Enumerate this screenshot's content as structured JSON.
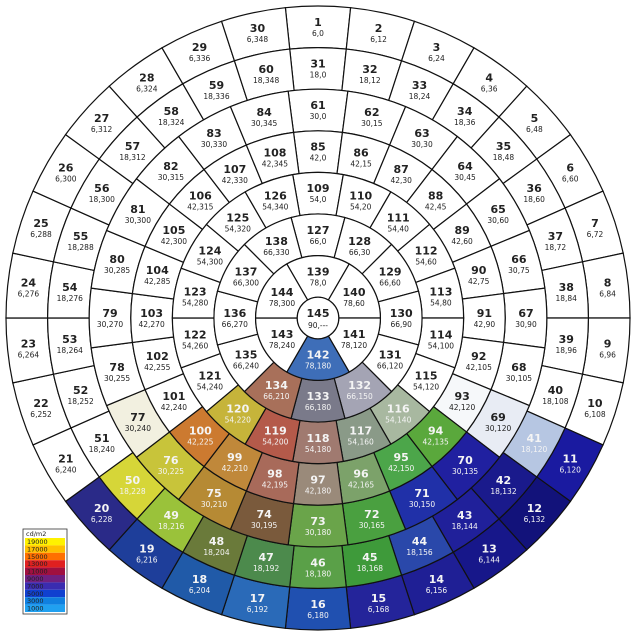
{
  "diagram": {
    "type": "sky-patch-luminance-map",
    "rings": [
      {
        "alt": 6,
        "count": 30,
        "start": 1
      },
      {
        "alt": 18,
        "count": 30,
        "start": 31
      },
      {
        "alt": 30,
        "count": 24,
        "start": 61
      },
      {
        "alt": 42,
        "count": 24,
        "start": 85
      },
      {
        "alt": 54,
        "count": 18,
        "start": 109
      },
      {
        "alt": 66,
        "count": 12,
        "start": 127
      },
      {
        "alt": 78,
        "count": 6,
        "start": 139
      },
      {
        "alt": 90,
        "count": 1,
        "start": 145
      }
    ],
    "zenith_coord": "90,---",
    "fills": {
      "1": null,
      "2": null,
      "3": null,
      "4": null,
      "5": null,
      "6": null,
      "7": null,
      "8": null,
      "9": null,
      "10": null,
      "11": "#1a1aa0",
      "12": "#12127a",
      "13": "#17178a",
      "14": "#1f1f95",
      "15": "#24249a",
      "16": "#2050b0",
      "17": "#2a6ab8",
      "18": "#205aa8",
      "19": "#1e3e9a",
      "20": "#2a2a88",
      "21": null,
      "22": null,
      "23": null,
      "24": null,
      "25": null,
      "26": null,
      "27": null,
      "28": null,
      "29": null,
      "30": null,
      "31": null,
      "32": null,
      "33": null,
      "34": null,
      "35": null,
      "36": null,
      "37": null,
      "38": null,
      "39": null,
      "40": null,
      "41": "#b6c6e2",
      "42": "#1a1a8c",
      "43": "#20209a",
      "44": "#2a48aa",
      "45": "#3e9a3a",
      "46": "#5aa048",
      "47": "#4c8a4c",
      "48": "#6a7a3a",
      "49": "#9ac23a",
      "50": "#d6d638",
      "51": null,
      "52": null,
      "53": null,
      "54": null,
      "55": null,
      "56": null,
      "57": null,
      "58": null,
      "59": null,
      "60": null,
      "61": null,
      "62": null,
      "63": null,
      "64": null,
      "65": null,
      "66": null,
      "67": null,
      "68": null,
      "69": "#e8ecf4",
      "70": "#2020a0",
      "71": "#2030a8",
      "72": "#4aa040",
      "73": "#6aa44a",
      "74": "#7a5a3c",
      "75": "#b68a34",
      "76": "#c8c43a",
      "77": "#f2f0e0",
      "78": null,
      "79": null,
      "80": null,
      "81": null,
      "82": null,
      "83": null,
      "84": null,
      "85": null,
      "86": null,
      "87": null,
      "88": null,
      "89": null,
      "90": null,
      "91": null,
      "92": null,
      "93": "#f6f8fa",
      "94": "#5aa83c",
      "95": "#4ca64a",
      "96": "#7ca26a",
      "97": "#9a8a7a",
      "98": "#a86a5a",
      "99": "#c0883a",
      "100": "#cc7a30",
      "101": null,
      "102": null,
      "103": null,
      "104": null,
      "105": null,
      "106": null,
      "107": null,
      "108": null,
      "109": null,
      "110": null,
      "111": null,
      "112": null,
      "113": null,
      "114": null,
      "115": null,
      "116": "#a8b8a0",
      "117": "#8a9a88",
      "118": "#a07a70",
      "119": "#b45a4a",
      "120": "#c6b43a",
      "121": null,
      "122": null,
      "123": null,
      "124": null,
      "125": null,
      "126": null,
      "127": null,
      "128": null,
      "129": null,
      "130": null,
      "131": null,
      "132": "#a4a4b4",
      "133": "#7a7a8a",
      "134": "#a8705a",
      "135": null,
      "136": null,
      "137": null,
      "138": null,
      "139": null,
      "140": null,
      "141": null,
      "142": "#3e6eb8",
      "143": null,
      "144": null,
      "145": null
    },
    "legend": {
      "title": "cd/m2",
      "stops": [
        "19000",
        "17000",
        "15000",
        "13000",
        "11000",
        "9000",
        "7000",
        "5000",
        "3000",
        "1000"
      ],
      "colors": [
        "#fff200",
        "#ffc000",
        "#ff7000",
        "#e02020",
        "#a01040",
        "#702080",
        "#3a2cb0",
        "#1040d0",
        "#1080e0",
        "#20a0f0"
      ]
    }
  }
}
